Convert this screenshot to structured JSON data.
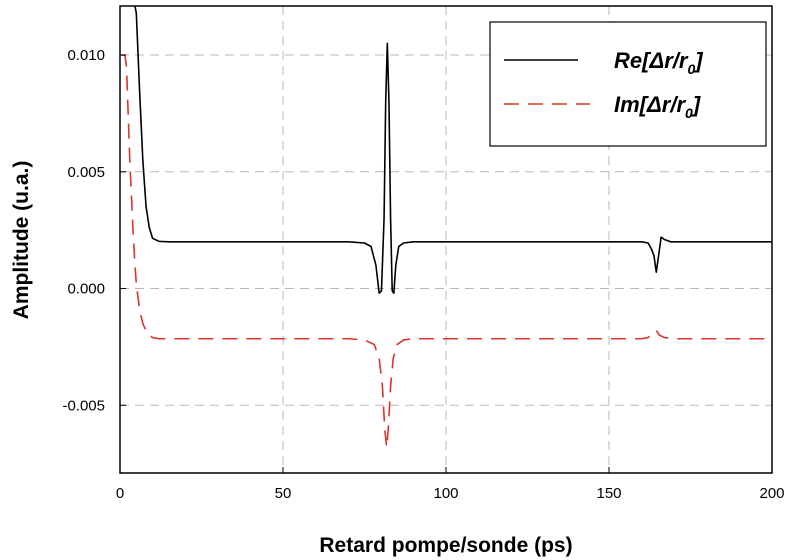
{
  "chart_data": {
    "type": "line",
    "title": "",
    "xlabel": "Retard pompe/sonde (ps)",
    "ylabel": "Amplitude (u.a.)",
    "xlim": [
      0,
      200
    ],
    "ylim": [
      -0.0079,
      0.0121
    ],
    "x_ticks": [
      {
        "value": 0,
        "label": "0"
      },
      {
        "value": 50,
        "label": "50"
      },
      {
        "value": 100,
        "label": "100"
      },
      {
        "value": 150,
        "label": "150"
      },
      {
        "value": 200,
        "label": "200"
      }
    ],
    "y_ticks": [
      {
        "value": 0.01,
        "label": "0.010"
      },
      {
        "value": 0.005,
        "label": "0.005"
      },
      {
        "value": 0.0,
        "label": "0.000"
      },
      {
        "value": -0.005,
        "label": "-0.005"
      }
    ],
    "grid": true,
    "legend_position": "top-right",
    "series": [
      {
        "name_main": "Re[Δr/r",
        "name_sub": "0",
        "name_end": "]",
        "color": "#000000",
        "dash": "solid",
        "x": [
          0.3,
          0.6,
          1,
          1.5,
          2,
          2.5,
          3,
          3.5,
          4,
          5,
          6,
          7,
          8,
          9,
          10,
          12,
          15,
          20,
          40,
          60,
          70,
          75,
          77,
          78.5,
          79.5,
          80.2,
          81,
          81.5,
          82,
          82.5,
          83,
          83.5,
          84,
          84.6,
          85.5,
          87,
          90,
          100,
          120,
          140,
          155,
          160,
          162,
          163,
          163.8,
          164.5,
          165.2,
          166,
          167,
          169,
          175,
          190,
          200
        ],
        "y": [
          0.0125,
          0.0125,
          0.0125,
          0.0125,
          0.0125,
          0.0125,
          0.0125,
          0.0125,
          0.0125,
          0.0118,
          0.0085,
          0.0055,
          0.0035,
          0.0026,
          0.00215,
          0.00202,
          0.002,
          0.002,
          0.002,
          0.002,
          0.002,
          0.00195,
          0.0018,
          0.001,
          -0.0002,
          -0.0001,
          0.003,
          0.008,
          0.0105,
          0.008,
          0.003,
          -0.0001,
          -0.0002,
          0.001,
          0.0018,
          0.00195,
          0.002,
          0.002,
          0.002,
          0.002,
          0.002,
          0.002,
          0.00195,
          0.0017,
          0.0014,
          0.0007,
          0.0014,
          0.0022,
          0.0021,
          0.002,
          0.002,
          0.002,
          0.002
        ]
      },
      {
        "name_main": "Im[Δr/r",
        "name_sub": "0",
        "name_end": "]",
        "color": "#d9352a",
        "dash": "dashed",
        "x": [
          0.5,
          1,
          1.5,
          2,
          2.5,
          3,
          3.5,
          4,
          4.5,
          5,
          6,
          7,
          8,
          9,
          10,
          12,
          15,
          20,
          40,
          60,
          70,
          75,
          78,
          79.5,
          80.5,
          81.2,
          81.8,
          82.3,
          83,
          83.8,
          85,
          87,
          90,
          100,
          120,
          140,
          155,
          160,
          162,
          163.5,
          164.5,
          165.5,
          167,
          170,
          180,
          190,
          200
        ],
        "y": [
          0.01,
          0.01,
          0.01,
          0.0095,
          0.0075,
          0.0055,
          0.004,
          0.0025,
          0.0012,
          0.0002,
          -0.0009,
          -0.0015,
          -0.0018,
          -0.002,
          -0.0021,
          -0.00215,
          -0.00215,
          -0.00215,
          -0.00215,
          -0.00215,
          -0.00215,
          -0.0022,
          -0.0024,
          -0.003,
          -0.0042,
          -0.006,
          -0.0068,
          -0.006,
          -0.0042,
          -0.003,
          -0.0024,
          -0.0022,
          -0.00215,
          -0.00215,
          -0.00215,
          -0.00215,
          -0.00215,
          -0.00215,
          -0.0021,
          -0.0019,
          -0.0018,
          -0.002,
          -0.0021,
          -0.00215,
          -0.00215,
          -0.00215,
          -0.00215
        ]
      }
    ]
  }
}
